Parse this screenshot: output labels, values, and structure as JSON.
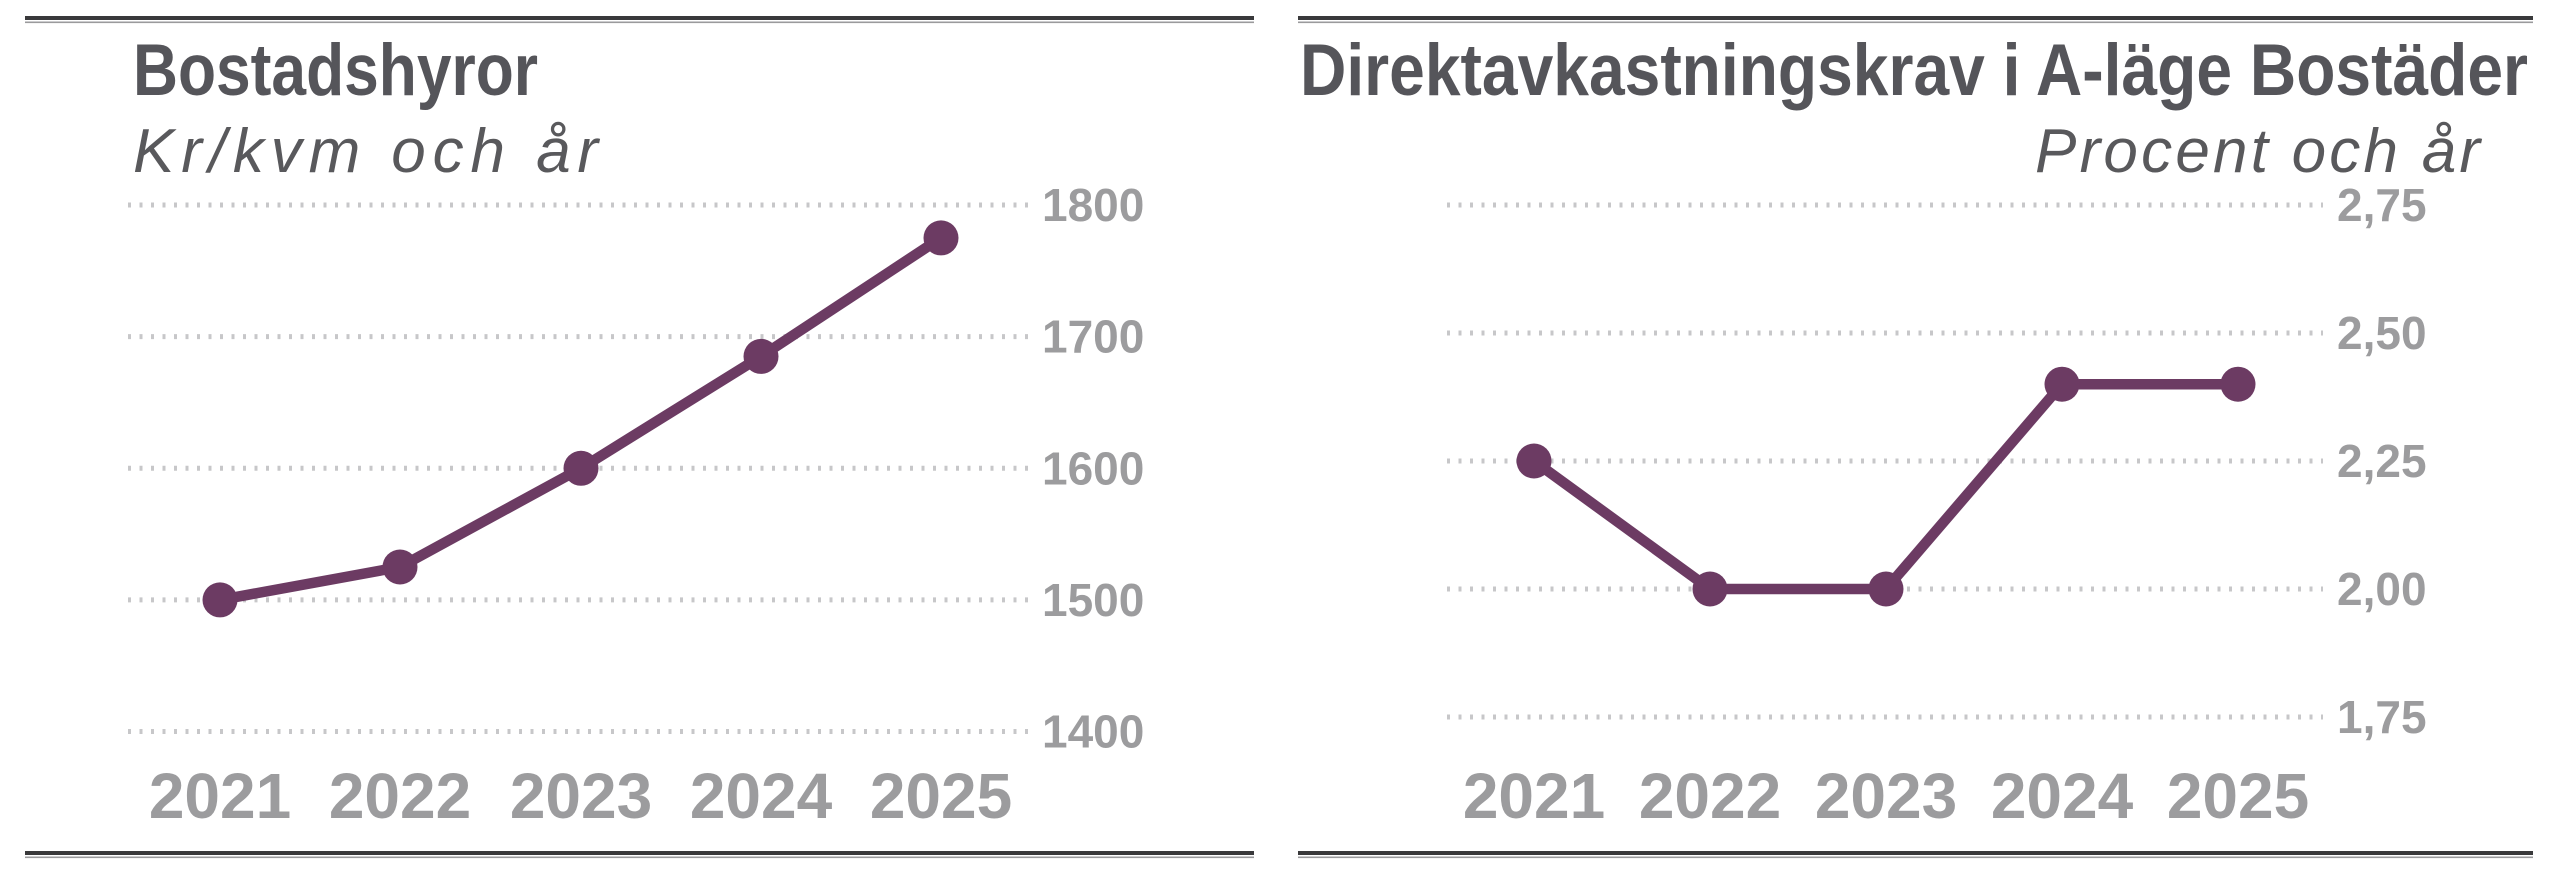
{
  "figure": {
    "background": "#FFFFFF",
    "description": "Two line charts side by side with top and bottom horizontal rules"
  },
  "colors": {
    "line": "#6C3B63",
    "grid": "#C7C7C9",
    "axis_label": "#9C9C9E",
    "title": "#55555A",
    "subtitle": "#59595C",
    "rule": "#39393B",
    "rule_echo": "#9A9A9C",
    "background": "#FFFFFF"
  },
  "chart_data": [
    {
      "type": "line",
      "title": "Bostadshyror",
      "subtitle": "Kr/kvm och år",
      "ylabel": "Kr/kvm och år",
      "categories": [
        "2021",
        "2022",
        "2023",
        "2024",
        "2025"
      ],
      "values": [
        1500,
        1525,
        1600,
        1685,
        1775
      ],
      "y_ticks": [
        "1800",
        "1700",
        "1600",
        "1500",
        "1400"
      ],
      "y_tick_values": [
        1800,
        1700,
        1600,
        1500,
        1400
      ],
      "ylim": [
        1400,
        1800
      ],
      "grid": "dotted",
      "legend": "none",
      "line_color": "#6C3B63"
    },
    {
      "type": "line",
      "title": "Direktavkastningskrav i A-läge Bostäder",
      "subtitle": "Procent och år",
      "ylabel": "Procent och år",
      "categories": [
        "2021",
        "2022",
        "2023",
        "2024",
        "2025"
      ],
      "values": [
        2.25,
        2.0,
        2.0,
        2.4,
        2.4
      ],
      "y_ticks": [
        "2,75",
        "2,50",
        "2,25",
        "2,00",
        "1,75"
      ],
      "y_tick_values": [
        2.75,
        2.5,
        2.25,
        2.0,
        1.75
      ],
      "ylim": [
        1.75,
        2.75
      ],
      "grid": "dotted",
      "legend": "none",
      "line_color": "#6C3B63"
    }
  ]
}
